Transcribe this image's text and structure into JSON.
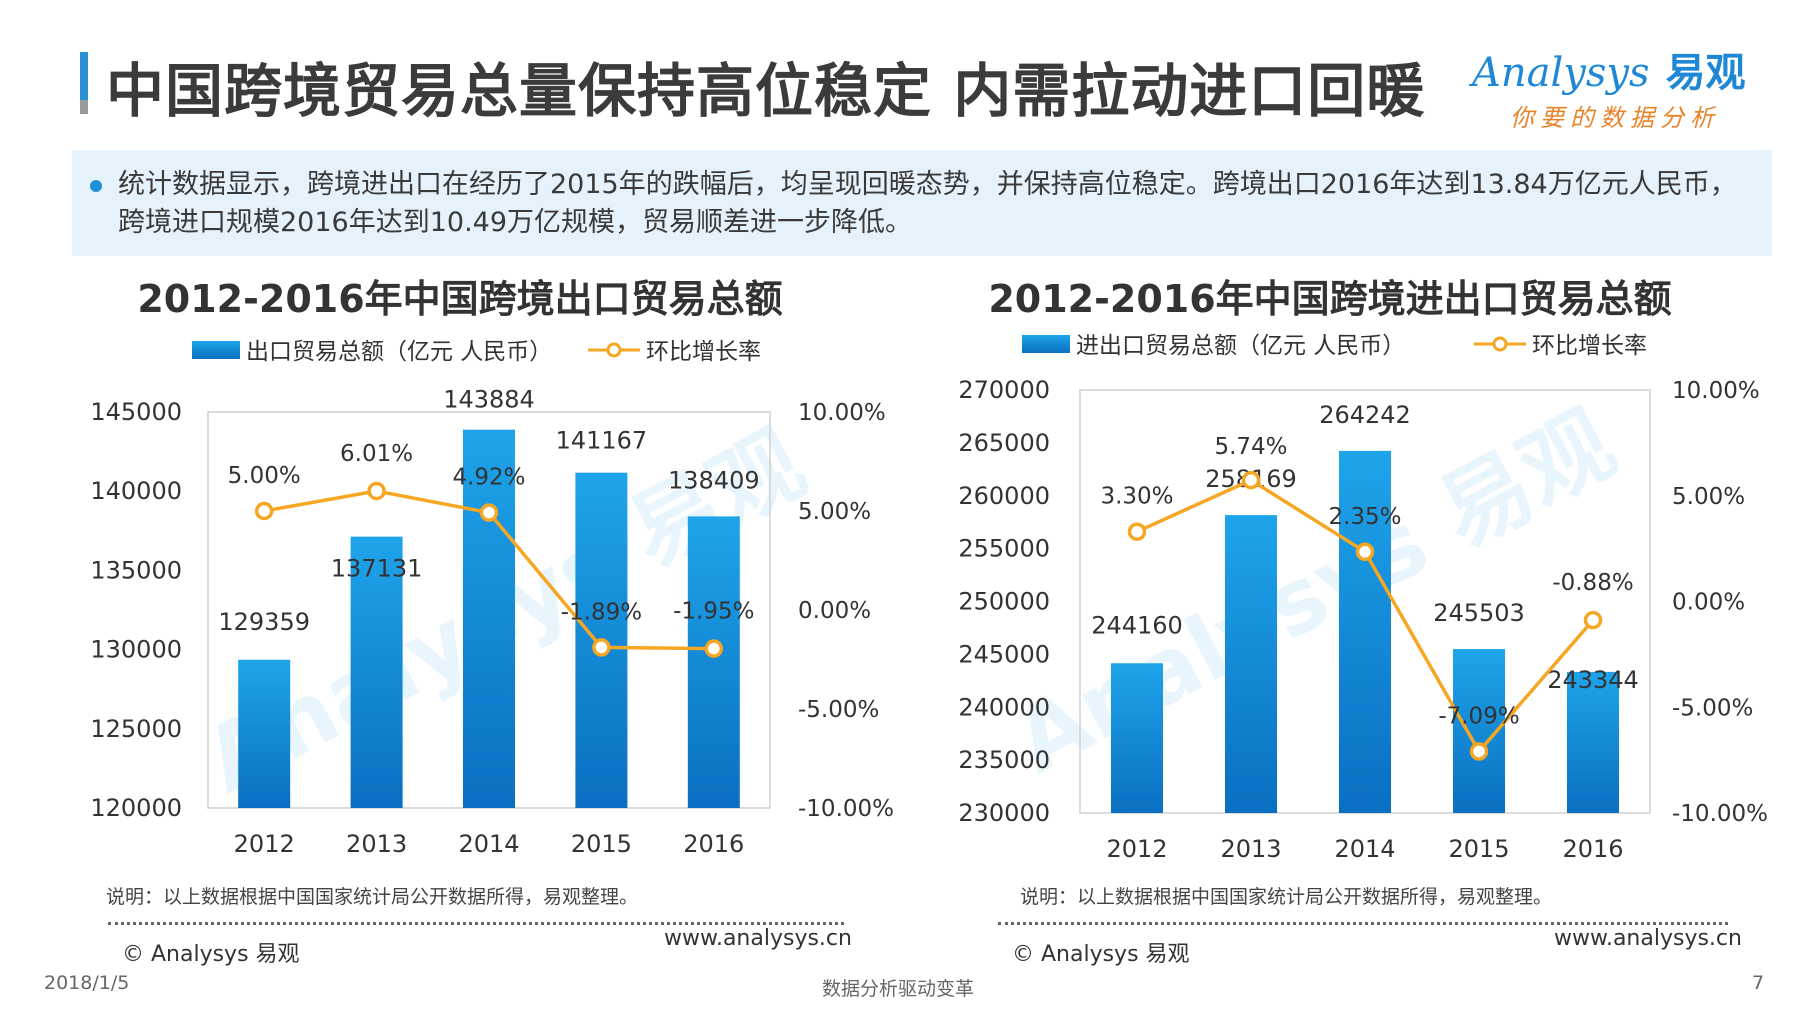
{
  "page": {
    "title": "中国跨境贸易总量保持高位稳定 内需拉动进口回暖",
    "summary": "统计数据显示，跨境进出口在经历了2015年的跌幅后，均呈现回暖态势，并保持高位稳定。跨境出口2016年达到13.84万亿元人民币，跨境进口规模2016年达到10.49万亿规模，贸易顺差进一步降低。",
    "logo_en": "Analysys",
    "logo_cn": "易观",
    "logo_sub": "你要的数据分析",
    "date": "2018/1/5",
    "slogan": "数据分析驱动变革",
    "page_number": "7",
    "watermark": "Analysys 易观",
    "watermark_sub": "你要的数据分析"
  },
  "colors": {
    "accent": "#1f8fd8",
    "bar_top": "#1ea4ea",
    "bar_bottom": "#0a6fc2",
    "line": "#f5a623",
    "summary_bg": "#e6f2fb"
  },
  "footer": {
    "left_note": "说明：以上数据根据中国国家统计局公开数据所得，易观整理。",
    "right_note": "说明：以上数据根据中国国家统计局公开数据所得，易观整理。",
    "left_copy": "© Analysys 易观",
    "right_copy": "© Analysys 易观",
    "left_url": "www.analysys.cn",
    "right_url": "www.analysys.cn"
  },
  "chart_data": [
    {
      "type": "bar",
      "title": "2012-2016年中国跨境出口贸易总额",
      "categories": [
        "2012",
        "2013",
        "2014",
        "2015",
        "2016"
      ],
      "series": [
        {
          "name": "出口贸易总额（亿元 人民币）",
          "type": "bar",
          "values": [
            129359,
            137131,
            143884,
            141167,
            138409
          ],
          "labels": [
            "129359",
            "137131",
            "143884",
            "141167",
            "138409"
          ]
        },
        {
          "name": "环比增长率",
          "type": "line",
          "axis": "right",
          "values": [
            5.0,
            6.01,
            4.92,
            -1.89,
            -1.95
          ],
          "labels": [
            "5.00%",
            "6.01%",
            "4.92%",
            "-1.89%",
            "-1.95%"
          ]
        }
      ],
      "ylim": [
        120000,
        145000
      ],
      "yticks": [
        "145000",
        "140000",
        "135000",
        "130000",
        "125000",
        "120000"
      ],
      "y2lim": [
        -10,
        10
      ],
      "y2ticks": [
        "10.00%",
        "5.00%",
        "0.00%",
        "-5.00%",
        "-10.00%"
      ]
    },
    {
      "type": "bar",
      "title": "2012-2016年中国跨境进出口贸易总额",
      "categories": [
        "2012",
        "2013",
        "2014",
        "2015",
        "2016"
      ],
      "series": [
        {
          "name": "进出口贸易总额（亿元 人民币）",
          "type": "bar",
          "values": [
            244160,
            258169,
            264242,
            245503,
            243344
          ],
          "labels": [
            "244160",
            "258169",
            "264242",
            "245503",
            "243344"
          ]
        },
        {
          "name": "环比增长率",
          "type": "line",
          "axis": "right",
          "values": [
            3.3,
            5.74,
            2.35,
            -7.09,
            -0.88
          ],
          "labels": [
            "3.30%",
            "5.74%",
            "2.35%",
            "-7.09%",
            "-0.88%"
          ]
        }
      ],
      "ylim": [
        230000,
        270000
      ],
      "yticks": [
        "270000",
        "265000",
        "260000",
        "255000",
        "250000",
        "245000",
        "240000",
        "235000",
        "230000"
      ],
      "y2lim": [
        -10,
        10
      ],
      "y2ticks": [
        "10.00%",
        "5.00%",
        "0.00%",
        "-5.00%",
        "-10.00%"
      ]
    }
  ]
}
